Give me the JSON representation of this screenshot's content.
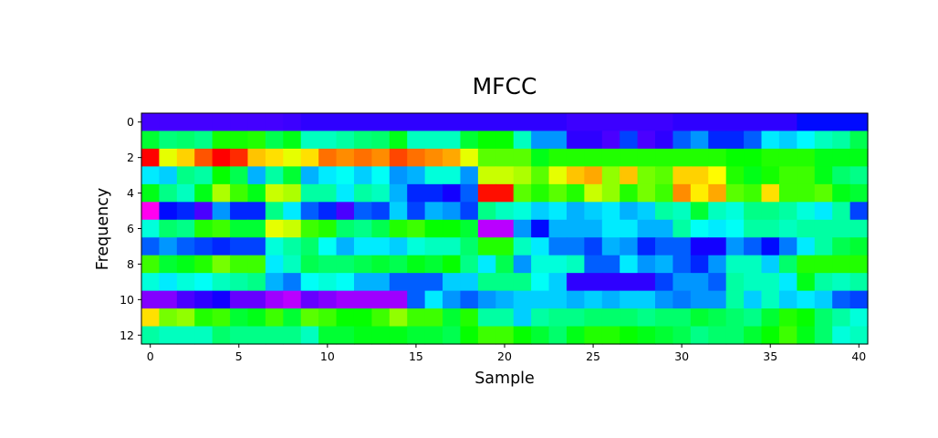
{
  "chart_data": {
    "type": "heatmap",
    "title": "MFCC",
    "xlabel": "Sample",
    "ylabel": "Frequency",
    "colormap": "gist_rainbow",
    "x_ticks": [
      0,
      5,
      10,
      15,
      20,
      25,
      30,
      35,
      40
    ],
    "y_ticks": [
      0,
      2,
      4,
      6,
      8,
      10,
      12
    ],
    "n_samples": 41,
    "n_frequencies": 13,
    "values_note": "normalized colormap position 0-1 (no colorbar shown)",
    "values": [
      [
        0.775,
        0.775,
        0.775,
        0.775,
        0.775,
        0.775,
        0.775,
        0.775,
        0.77,
        0.76,
        0.76,
        0.76,
        0.76,
        0.76,
        0.76,
        0.76,
        0.76,
        0.76,
        0.76,
        0.76,
        0.76,
        0.76,
        0.76,
        0.76,
        0.77,
        0.77,
        0.77,
        0.77,
        0.77,
        0.77,
        0.76,
        0.76,
        0.76,
        0.76,
        0.76,
        0.76,
        0.76,
        0.72,
        0.72,
        0.72,
        0.72
      ],
      [
        0.4,
        0.45,
        0.44,
        0.46,
        0.35,
        0.35,
        0.34,
        0.42,
        0.38,
        0.5,
        0.5,
        0.48,
        0.45,
        0.44,
        0.38,
        0.5,
        0.5,
        0.5,
        0.4,
        0.36,
        0.36,
        0.5,
        0.62,
        0.62,
        0.76,
        0.76,
        0.78,
        0.68,
        0.78,
        0.76,
        0.66,
        0.62,
        0.7,
        0.7,
        0.66,
        0.56,
        0.58,
        0.55,
        0.5,
        0.48,
        0.42
      ],
      [
        0.0,
        0.2,
        0.15,
        0.06,
        0.0,
        0.03,
        0.14,
        0.16,
        0.2,
        0.16,
        0.08,
        0.1,
        0.08,
        0.1,
        0.05,
        0.08,
        0.1,
        0.12,
        0.2,
        0.3,
        0.3,
        0.3,
        0.38,
        0.34,
        0.34,
        0.34,
        0.34,
        0.34,
        0.34,
        0.34,
        0.34,
        0.34,
        0.34,
        0.36,
        0.36,
        0.34,
        0.34,
        0.34,
        0.38,
        0.38,
        0.38
      ],
      [
        0.56,
        0.58,
        0.46,
        0.48,
        0.36,
        0.42,
        0.6,
        0.48,
        0.4,
        0.6,
        0.56,
        0.54,
        0.58,
        0.54,
        0.62,
        0.6,
        0.52,
        0.52,
        0.62,
        0.22,
        0.22,
        0.24,
        0.3,
        0.2,
        0.14,
        0.12,
        0.26,
        0.14,
        0.28,
        0.3,
        0.15,
        0.15,
        0.18,
        0.34,
        0.38,
        0.35,
        0.32,
        0.32,
        0.38,
        0.44,
        0.46
      ],
      [
        0.38,
        0.46,
        0.5,
        0.38,
        0.24,
        0.32,
        0.38,
        0.22,
        0.24,
        0.48,
        0.48,
        0.56,
        0.48,
        0.5,
        0.6,
        0.7,
        0.7,
        0.74,
        0.66,
        0.01,
        0.01,
        0.3,
        0.34,
        0.3,
        0.34,
        0.22,
        0.26,
        0.34,
        0.28,
        0.32,
        0.1,
        0.17,
        0.12,
        0.3,
        0.32,
        0.16,
        0.32,
        0.32,
        0.3,
        0.38,
        0.4
      ],
      [
        0.92,
        0.72,
        0.7,
        0.78,
        0.62,
        0.7,
        0.7,
        0.46,
        0.56,
        0.66,
        0.7,
        0.78,
        0.66,
        0.68,
        0.58,
        0.68,
        0.6,
        0.62,
        0.68,
        0.46,
        0.5,
        0.52,
        0.58,
        0.56,
        0.6,
        0.58,
        0.56,
        0.6,
        0.58,
        0.48,
        0.5,
        0.4,
        0.5,
        0.52,
        0.46,
        0.46,
        0.48,
        0.52,
        0.56,
        0.48,
        0.68
      ],
      [
        0.52,
        0.44,
        0.46,
        0.34,
        0.32,
        0.4,
        0.4,
        0.2,
        0.22,
        0.32,
        0.34,
        0.44,
        0.46,
        0.42,
        0.34,
        0.32,
        0.36,
        0.36,
        0.4,
        0.86,
        0.86,
        0.62,
        0.72,
        0.6,
        0.6,
        0.6,
        0.56,
        0.56,
        0.6,
        0.6,
        0.48,
        0.54,
        0.56,
        0.54,
        0.48,
        0.48,
        0.5,
        0.48,
        0.48,
        0.48,
        0.48
      ],
      [
        0.66,
        0.62,
        0.66,
        0.68,
        0.7,
        0.68,
        0.68,
        0.52,
        0.48,
        0.44,
        0.54,
        0.6,
        0.56,
        0.56,
        0.58,
        0.52,
        0.5,
        0.5,
        0.44,
        0.34,
        0.34,
        0.5,
        0.56,
        0.64,
        0.64,
        0.68,
        0.6,
        0.62,
        0.7,
        0.66,
        0.66,
        0.74,
        0.74,
        0.62,
        0.66,
        0.72,
        0.64,
        0.56,
        0.48,
        0.42,
        0.4
      ],
      [
        0.32,
        0.4,
        0.38,
        0.34,
        0.28,
        0.32,
        0.32,
        0.56,
        0.5,
        0.42,
        0.44,
        0.44,
        0.42,
        0.4,
        0.42,
        0.38,
        0.4,
        0.36,
        0.46,
        0.56,
        0.42,
        0.62,
        0.52,
        0.52,
        0.5,
        0.66,
        0.66,
        0.56,
        0.62,
        0.6,
        0.66,
        0.7,
        0.62,
        0.5,
        0.5,
        0.58,
        0.44,
        0.34,
        0.34,
        0.34,
        0.34
      ],
      [
        0.52,
        0.56,
        0.52,
        0.54,
        0.5,
        0.48,
        0.46,
        0.6,
        0.64,
        0.54,
        0.52,
        0.54,
        0.6,
        0.6,
        0.66,
        0.66,
        0.66,
        0.58,
        0.58,
        0.46,
        0.46,
        0.46,
        0.54,
        0.58,
        0.76,
        0.76,
        0.76,
        0.76,
        0.76,
        0.68,
        0.62,
        0.62,
        0.66,
        0.48,
        0.5,
        0.5,
        0.56,
        0.38,
        0.48,
        0.5,
        0.48
      ],
      [
        0.82,
        0.82,
        0.78,
        0.76,
        0.74,
        0.8,
        0.8,
        0.84,
        0.86,
        0.8,
        0.82,
        0.84,
        0.84,
        0.84,
        0.84,
        0.66,
        0.56,
        0.62,
        0.66,
        0.62,
        0.6,
        0.58,
        0.58,
        0.58,
        0.6,
        0.58,
        0.6,
        0.58,
        0.58,
        0.62,
        0.64,
        0.62,
        0.62,
        0.48,
        0.58,
        0.5,
        0.58,
        0.56,
        0.58,
        0.66,
        0.68
      ],
      [
        0.16,
        0.28,
        0.26,
        0.34,
        0.32,
        0.4,
        0.38,
        0.32,
        0.4,
        0.3,
        0.32,
        0.36,
        0.36,
        0.32,
        0.26,
        0.32,
        0.32,
        0.4,
        0.34,
        0.48,
        0.48,
        0.58,
        0.48,
        0.46,
        0.46,
        0.44,
        0.44,
        0.44,
        0.46,
        0.44,
        0.44,
        0.4,
        0.42,
        0.44,
        0.46,
        0.4,
        0.34,
        0.36,
        0.44,
        0.48,
        0.52
      ],
      [
        0.48,
        0.5,
        0.5,
        0.5,
        0.44,
        0.46,
        0.46,
        0.46,
        0.46,
        0.5,
        0.4,
        0.4,
        0.38,
        0.38,
        0.38,
        0.4,
        0.4,
        0.42,
        0.36,
        0.32,
        0.32,
        0.36,
        0.4,
        0.44,
        0.38,
        0.34,
        0.34,
        0.36,
        0.38,
        0.4,
        0.42,
        0.46,
        0.44,
        0.44,
        0.4,
        0.36,
        0.32,
        0.38,
        0.44,
        0.52,
        0.5
      ]
    ]
  }
}
